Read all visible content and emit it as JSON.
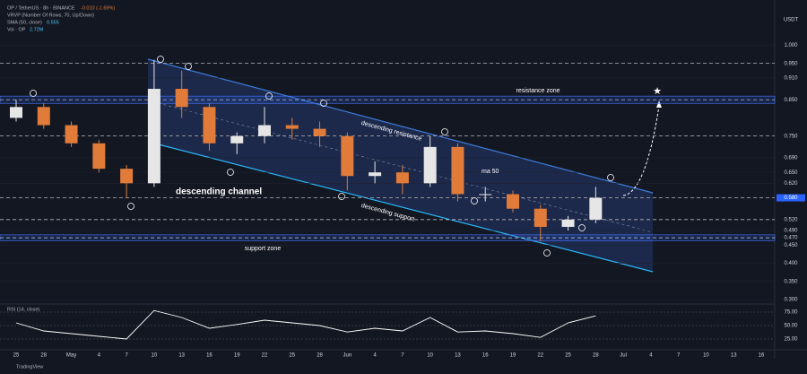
{
  "chart_data": {
    "type": "candlestick",
    "header": {
      "symbol": "OP / TetherUS · 8h · BINANCE",
      "change": "-0.010 (-1.69%)",
      "vrvp": "VRVP (Number Of Rows, 70, Up/Down)",
      "sma": "SMA (50, close)",
      "sma_value": "0.555",
      "vol": "Vol · OP",
      "vol_value": "2.72M",
      "rsi": "RSI (14, close)",
      "currency": "USDT",
      "brand": "TradingView"
    },
    "categories": [
      "25",
      "28",
      "May",
      "4",
      "7",
      "10",
      "13",
      "16",
      "19",
      "22",
      "25",
      "28",
      "Jun",
      "4",
      "7",
      "10",
      "13",
      "16",
      "19",
      "22",
      "25",
      "28",
      "Jul",
      "4",
      "7",
      "10",
      "13",
      "16"
    ],
    "open": [
      0.8,
      0.83,
      0.78,
      0.73,
      0.66,
      0.62,
      0.88,
      0.83,
      0.73,
      0.75,
      0.78,
      0.77,
      0.75,
      0.64,
      0.65,
      0.62,
      0.72,
      0.59,
      0.59,
      0.55,
      0.5,
      0.52,
      null,
      null,
      null,
      null,
      null,
      null
    ],
    "high": [
      0.85,
      0.84,
      0.79,
      0.74,
      0.67,
      0.96,
      0.93,
      0.84,
      0.76,
      0.83,
      0.8,
      0.79,
      0.76,
      0.68,
      0.67,
      0.75,
      0.73,
      0.61,
      0.6,
      0.56,
      0.53,
      0.61,
      null,
      null,
      null,
      null,
      null,
      null
    ],
    "low": [
      0.79,
      0.77,
      0.72,
      0.65,
      0.58,
      0.61,
      0.8,
      0.71,
      0.7,
      0.73,
      0.74,
      0.72,
      0.6,
      0.62,
      0.59,
      0.61,
      0.57,
      0.57,
      0.54,
      0.46,
      0.49,
      0.51,
      null,
      null,
      null,
      null,
      null,
      null
    ],
    "close": [
      0.83,
      0.78,
      0.73,
      0.66,
      0.62,
      0.88,
      0.83,
      0.73,
      0.75,
      0.78,
      0.77,
      0.75,
      0.64,
      0.65,
      0.62,
      0.72,
      0.59,
      0.59,
      0.55,
      0.5,
      0.52,
      0.58,
      null,
      null,
      null,
      null,
      null,
      null
    ],
    "up_color": "#e6e6e6",
    "down_color": "#e07b39",
    "ylim": [
      0.29,
      1.09
    ],
    "yticks": [
      {
        "value": 1.0,
        "label": "1.000"
      },
      {
        "value": 0.95,
        "label": "0.950"
      },
      {
        "value": 0.91,
        "label": "0.910"
      },
      {
        "value": 0.85,
        "label": "0.850"
      },
      {
        "value": 0.75,
        "label": "0.750"
      },
      {
        "value": 0.69,
        "label": "0.690"
      },
      {
        "value": 0.65,
        "label": "0.650"
      },
      {
        "value": 0.62,
        "label": "0.620"
      },
      {
        "value": 0.58,
        "label": "0.580"
      },
      {
        "value": 0.52,
        "label": "0.520"
      },
      {
        "value": 0.49,
        "label": "0.490"
      },
      {
        "value": 0.47,
        "label": "0.470"
      },
      {
        "value": 0.45,
        "label": "0.450"
      },
      {
        "value": 0.4,
        "label": "0.400"
      },
      {
        "value": 0.35,
        "label": "0.350"
      },
      {
        "value": 0.3,
        "label": "0.300"
      }
    ],
    "levels": [
      0.95,
      0.85,
      0.75,
      0.58,
      0.52,
      0.47
    ],
    "current_price": {
      "value": 0.58,
      "label": "0.580"
    },
    "zones": [
      {
        "name": "resistance zone",
        "range": [
          0.84,
          0.86
        ]
      },
      {
        "name": "support zone",
        "range": [
          0.462,
          0.478
        ]
      }
    ],
    "annotations": [
      "descending resistance",
      "ma 50",
      "descending channel",
      "descending support"
    ],
    "rsi": {
      "values": [
        55,
        40,
        35,
        30,
        25,
        78,
        65,
        45,
        52,
        60,
        55,
        50,
        38,
        45,
        40,
        65,
        38,
        40,
        35,
        28,
        55,
        68,
        null,
        null,
        null,
        null,
        null,
        null
      ],
      "color": "#ffffff",
      "ylim": [
        10,
        85
      ],
      "yticks": [
        {
          "value": 75,
          "label": "75.00"
        },
        {
          "value": 50,
          "label": "50.00"
        },
        {
          "value": 25,
          "label": "25.00"
        }
      ]
    }
  }
}
